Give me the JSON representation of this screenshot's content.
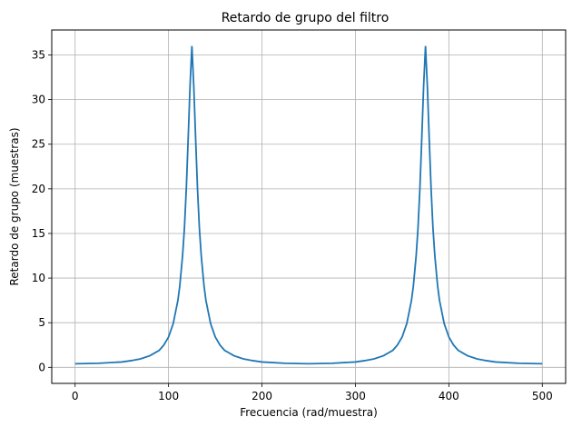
{
  "chart_data": {
    "type": "line",
    "title": "Retardo de grupo del filtro",
    "xlabel": "Frecuencia (rad/muestra)",
    "ylabel": "Retardo de grupo (muestras)",
    "xlim": [
      -25,
      525
    ],
    "ylim": [
      -1.8,
      37.8
    ],
    "xticks": [
      0,
      100,
      200,
      300,
      400,
      500
    ],
    "yticks": [
      0,
      5,
      10,
      15,
      20,
      25,
      30,
      35
    ],
    "grid": true,
    "series_color": "#1f77b4",
    "series": [
      {
        "x": [
          0,
          25,
          50,
          60,
          70,
          80,
          90,
          95,
          100,
          105,
          110,
          112,
          115,
          117,
          119,
          121,
          123,
          125,
          127,
          129,
          131,
          133,
          135,
          138,
          140,
          145,
          150,
          155,
          160,
          170,
          180,
          190,
          200,
          225,
          250,
          275,
          300,
          310,
          320,
          330,
          340,
          345,
          350,
          355,
          360,
          362,
          365,
          367,
          369,
          371,
          373,
          375,
          377,
          379,
          381,
          383,
          385,
          388,
          390,
          395,
          400,
          405,
          410,
          420,
          430,
          440,
          450,
          475,
          500
        ],
        "values": [
          0.4,
          0.45,
          0.6,
          0.75,
          0.95,
          1.3,
          1.9,
          2.5,
          3.4,
          4.9,
          7.5,
          9.1,
          12.5,
          15.6,
          20.0,
          25.6,
          31.5,
          36.0,
          31.5,
          25.6,
          20.0,
          15.6,
          12.5,
          9.1,
          7.5,
          4.9,
          3.4,
          2.5,
          1.9,
          1.3,
          0.95,
          0.75,
          0.6,
          0.45,
          0.4,
          0.45,
          0.6,
          0.75,
          0.95,
          1.3,
          1.9,
          2.5,
          3.4,
          4.9,
          7.5,
          9.1,
          12.5,
          15.6,
          20.0,
          25.6,
          31.5,
          36.0,
          31.5,
          25.6,
          20.0,
          15.6,
          12.5,
          9.1,
          7.5,
          4.9,
          3.4,
          2.5,
          1.9,
          1.3,
          0.95,
          0.75,
          0.6,
          0.45,
          0.4
        ]
      }
    ]
  }
}
